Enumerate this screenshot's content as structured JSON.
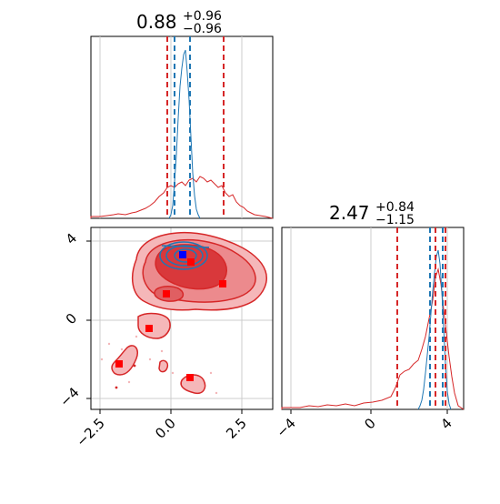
{
  "chart_data": {
    "type": "corner",
    "params": [
      {
        "median": "0.88",
        "plus": "+0.96",
        "minus": "−0.96"
      },
      {
        "median": "2.47",
        "plus": "+0.84",
        "minus": "−1.15"
      }
    ],
    "x0_ticks": [
      "−2.5",
      "0.0",
      "2.5"
    ],
    "x1_ticks": [
      "−4",
      "0",
      "4"
    ],
    "y1_ticks": [
      "−4",
      "0",
      "4"
    ],
    "x0_range": [
      -2.5,
      3.5
    ],
    "x1_range": [
      -4.5,
      4.5
    ],
    "colors": {
      "red": "#d62728",
      "blue": "#1f77b4",
      "grid": "#cccccc"
    },
    "hist0": {
      "red_quantiles": [
        -0.15,
        1.85
      ],
      "blue_quantiles": [
        0.05,
        0.7
      ],
      "red_markers": [
        -0.15,
        1.85
      ],
      "blue_markers": [
        0.1,
        0.7
      ]
    },
    "hist1": {
      "red_quantiles": [
        1.35,
        3.3,
        3.8
      ],
      "blue_quantiles": [
        3.0,
        3.8
      ]
    },
    "markers": {
      "red": [
        [
          -1.8,
          -2.2
        ],
        [
          -0.7,
          -0.4
        ],
        [
          -0.1,
          1.3
        ],
        [
          0.75,
          3.0
        ],
        [
          1.85,
          1.85
        ],
        [
          0.75,
          -2.9
        ]
      ],
      "blue": [
        [
          0.5,
          3.3
        ]
      ]
    }
  }
}
